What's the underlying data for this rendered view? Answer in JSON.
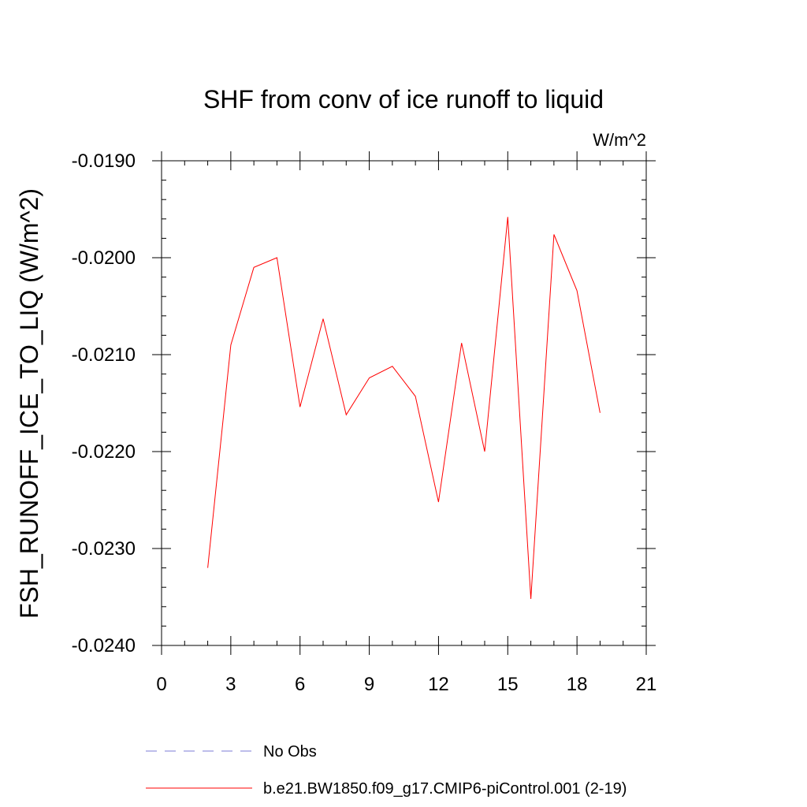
{
  "chart_data": {
    "type": "line",
    "title": "SHF from conv of ice runoff to liquid",
    "units": "W/m^2",
    "ylabel": "FSH_RUNOFF_ICE_TO_LIQ  (W/m^2)",
    "xlabel": "",
    "xlim": [
      0,
      21
    ],
    "ylim": [
      -0.024,
      -0.019
    ],
    "xticks": [
      0,
      3,
      6,
      9,
      12,
      15,
      18,
      21
    ],
    "xtick_labels": [
      "0",
      "3",
      "6",
      "9",
      "12",
      "15",
      "18",
      "21"
    ],
    "yticks": [
      -0.024,
      -0.023,
      -0.022,
      -0.021,
      -0.02,
      -0.019
    ],
    "ytick_labels": [
      "-0.0240",
      "-0.0230",
      "-0.0220",
      "-0.0210",
      "-0.0200",
      "-0.0190"
    ],
    "grid": false,
    "legend_position": "bottom",
    "series": [
      {
        "name": "No Obs",
        "color": "#7b7bd6",
        "dash": "dashed",
        "x": [],
        "y": []
      },
      {
        "name": "b.e21.BW1850.f09_g17.CMIP6-piControl.001 (2-19)",
        "color": "#ff0000",
        "dash": "solid",
        "x": [
          2,
          3,
          4,
          5,
          6,
          7,
          8,
          9,
          10,
          11,
          12,
          13,
          14,
          15,
          16,
          17,
          18,
          19
        ],
        "y": [
          -0.0232,
          -0.0209,
          -0.0201,
          -0.02,
          -0.02154,
          -0.02063,
          -0.02162,
          -0.02124,
          -0.02112,
          -0.02143,
          -0.02252,
          -0.02088,
          -0.022,
          -0.01958,
          -0.02352,
          -0.01976,
          -0.02034,
          -0.0216
        ]
      }
    ]
  }
}
